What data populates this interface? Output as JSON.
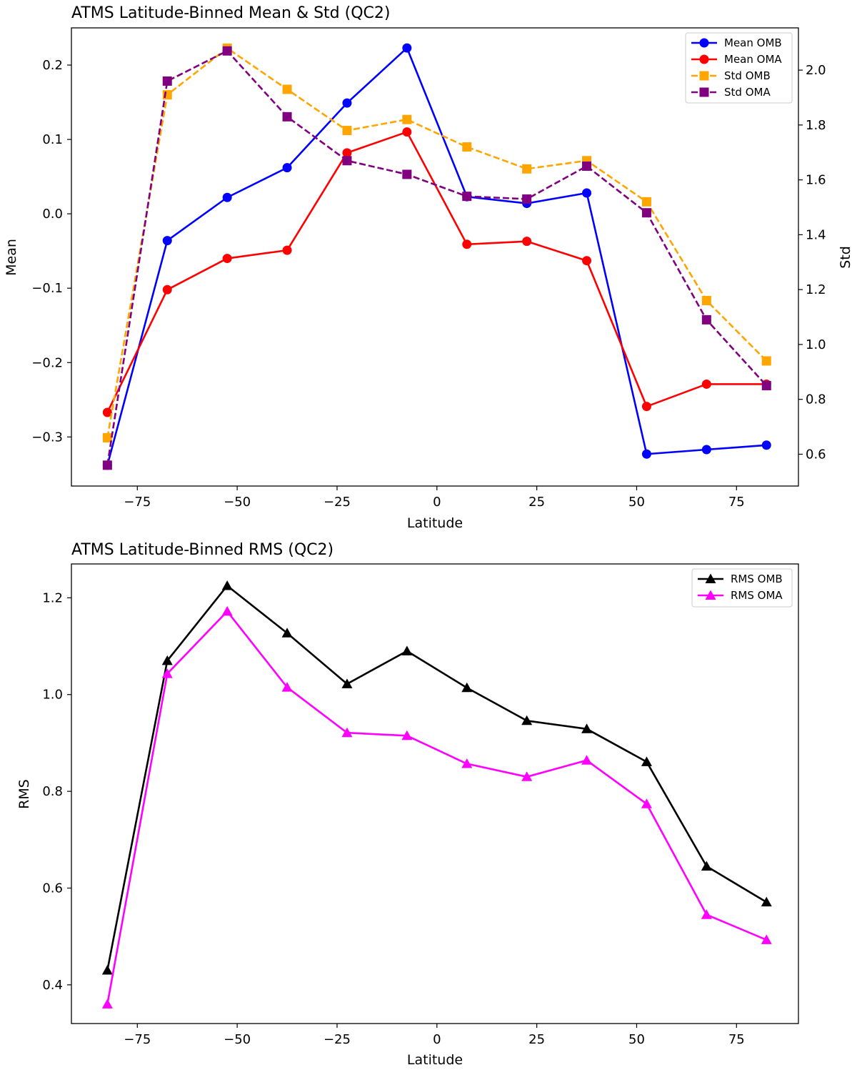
{
  "chart_data": [
    {
      "type": "line",
      "title": "ATMS Latitude-Binned Mean & Std (QC2)",
      "xlabel": "Latitude",
      "ylabel": "Mean",
      "ylabel_right": "Std",
      "xlim": [
        -91.5,
        90.5
      ],
      "ylim": [
        -0.366,
        0.25
      ],
      "ylim_right": [
        0.484,
        2.154
      ],
      "xticks": [
        -75,
        -50,
        -25,
        0,
        25,
        50,
        75
      ],
      "xtick_labels": [
        "−75",
        "−50",
        "−25",
        "0",
        "25",
        "50",
        "75"
      ],
      "yticks": [
        -0.3,
        -0.2,
        -0.1,
        0.0,
        0.1,
        0.2
      ],
      "ytick_labels": [
        "−0.3",
        "−0.2",
        "−0.1",
        "0.0",
        "0.1",
        "0.2"
      ],
      "yticks_right": [
        0.6,
        0.8,
        1.0,
        1.2,
        1.4,
        1.6,
        1.8,
        2.0
      ],
      "ytick_labels_right": [
        "0.6",
        "0.8",
        "1.0",
        "1.2",
        "1.4",
        "1.6",
        "1.8",
        "2.0"
      ],
      "grid": false,
      "legend_position": "top-right",
      "x": [
        -82.5,
        -67.5,
        -52.5,
        -37.5,
        -22.5,
        -7.5,
        7.5,
        22.5,
        37.5,
        52.5,
        67.5,
        82.5
      ],
      "series": [
        {
          "name": "Mean OMB",
          "axis": "left",
          "color": "#0000ff",
          "marker": "circle",
          "dash": "solid",
          "values": [
            -0.338,
            -0.036,
            0.022,
            0.062,
            0.149,
            0.223,
            0.023,
            0.014,
            0.028,
            -0.323,
            -0.317,
            -0.311
          ]
        },
        {
          "name": "Mean OMA",
          "axis": "left",
          "color": "#ff0000",
          "marker": "circle",
          "dash": "solid",
          "values": [
            -0.267,
            -0.102,
            -0.06,
            -0.049,
            0.082,
            0.11,
            -0.041,
            -0.037,
            -0.063,
            -0.259,
            -0.229,
            -0.229
          ]
        },
        {
          "name": "Std OMB",
          "axis": "right",
          "color": "#ffa500",
          "marker": "square",
          "dash": "dashed",
          "values": [
            0.66,
            1.91,
            2.08,
            1.93,
            1.78,
            1.82,
            1.72,
            1.64,
            1.67,
            1.52,
            1.16,
            0.94
          ]
        },
        {
          "name": "Std OMA",
          "axis": "right",
          "color": "#800080",
          "marker": "square",
          "dash": "dashed",
          "values": [
            0.56,
            1.96,
            2.07,
            1.83,
            1.67,
            1.62,
            1.54,
            1.53,
            1.65,
            1.48,
            1.09,
            0.85
          ]
        }
      ]
    },
    {
      "type": "line",
      "title": "ATMS Latitude-Binned RMS (QC2)",
      "xlabel": "Latitude",
      "ylabel": "RMS",
      "xlim": [
        -91.5,
        90.5
      ],
      "ylim": [
        0.32,
        1.27
      ],
      "xticks": [
        -75,
        -50,
        -25,
        0,
        25,
        50,
        75
      ],
      "xtick_labels": [
        "−75",
        "−50",
        "−25",
        "0",
        "25",
        "50",
        "75"
      ],
      "yticks": [
        0.4,
        0.6,
        0.8,
        1.0,
        1.2
      ],
      "ytick_labels": [
        "0.4",
        "0.6",
        "0.8",
        "1.0",
        "1.2"
      ],
      "grid": false,
      "legend_position": "top-right",
      "x": [
        -82.5,
        -67.5,
        -52.5,
        -37.5,
        -22.5,
        -7.5,
        7.5,
        22.5,
        37.5,
        52.5,
        67.5,
        82.5
      ],
      "series": [
        {
          "name": "RMS OMB",
          "axis": "left",
          "color": "#000000",
          "marker": "triangle",
          "dash": "solid",
          "values": [
            0.43,
            1.07,
            1.225,
            1.127,
            1.022,
            1.09,
            1.014,
            0.946,
            0.929,
            0.861,
            0.645,
            0.571
          ]
        },
        {
          "name": "RMS OMA",
          "axis": "left",
          "color": "#ff00ff",
          "marker": "triangle",
          "dash": "solid",
          "values": [
            0.36,
            1.043,
            1.172,
            1.015,
            0.921,
            0.915,
            0.857,
            0.83,
            0.864,
            0.774,
            0.545,
            0.493
          ]
        }
      ]
    }
  ]
}
